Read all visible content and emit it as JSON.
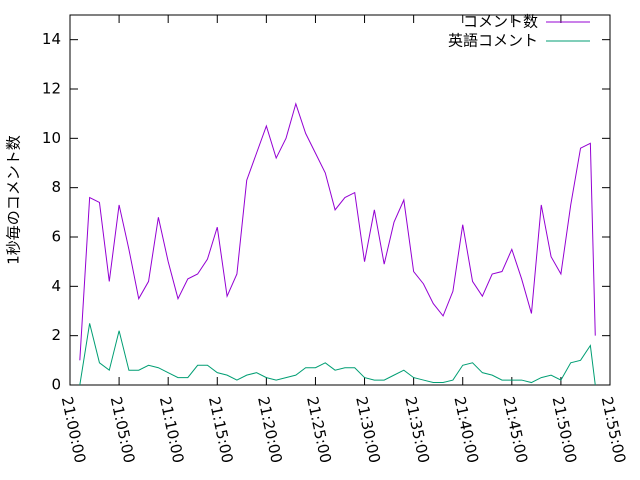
{
  "chart_data": {
    "type": "line",
    "ylabel": "1秒毎のコメント数",
    "x": [
      "21:01:00",
      "21:02:00",
      "21:03:00",
      "21:04:00",
      "21:05:00",
      "21:06:00",
      "21:07:00",
      "21:08:00",
      "21:09:00",
      "21:10:00",
      "21:11:00",
      "21:12:00",
      "21:13:00",
      "21:14:00",
      "21:15:00",
      "21:16:00",
      "21:17:00",
      "21:18:00",
      "21:19:00",
      "21:20:00",
      "21:21:00",
      "21:22:00",
      "21:23:00",
      "21:24:00",
      "21:25:00",
      "21:26:00",
      "21:27:00",
      "21:28:00",
      "21:29:00",
      "21:30:00",
      "21:31:00",
      "21:32:00",
      "21:33:00",
      "21:34:00",
      "21:35:00",
      "21:36:00",
      "21:37:00",
      "21:38:00",
      "21:39:00",
      "21:40:00",
      "21:41:00",
      "21:42:00",
      "21:43:00",
      "21:44:00",
      "21:45:00",
      "21:46:00",
      "21:47:00",
      "21:48:00",
      "21:49:00",
      "21:50:00",
      "21:51:00",
      "21:52:00",
      "21:53:00",
      "21:53:30"
    ],
    "series": [
      {
        "name": "コメント数",
        "color": "#9400d3",
        "values": [
          1.0,
          7.6,
          7.4,
          4.2,
          7.3,
          5.5,
          3.5,
          4.2,
          6.8,
          5.0,
          3.5,
          4.3,
          4.5,
          5.1,
          6.4,
          3.6,
          4.5,
          8.3,
          9.4,
          10.5,
          9.2,
          10.0,
          11.4,
          10.2,
          9.4,
          8.6,
          7.1,
          7.6,
          7.8,
          5.0,
          7.1,
          4.9,
          6.6,
          7.5,
          4.6,
          4.1,
          3.3,
          2.8,
          3.8,
          6.5,
          4.2,
          3.6,
          4.5,
          4.6,
          5.5,
          4.3,
          2.9,
          7.3,
          5.2,
          4.5,
          7.3,
          9.6,
          9.8,
          2.0
        ]
      },
      {
        "name": "英語コメント",
        "color": "#009e73",
        "values": [
          0.0,
          2.5,
          0.9,
          0.6,
          2.2,
          0.6,
          0.6,
          0.8,
          0.7,
          0.5,
          0.3,
          0.3,
          0.8,
          0.8,
          0.5,
          0.4,
          0.2,
          0.4,
          0.5,
          0.3,
          0.2,
          0.3,
          0.4,
          0.7,
          0.7,
          0.9,
          0.6,
          0.7,
          0.7,
          0.3,
          0.2,
          0.2,
          0.4,
          0.6,
          0.3,
          0.2,
          0.1,
          0.1,
          0.2,
          0.8,
          0.9,
          0.5,
          0.4,
          0.2,
          0.2,
          0.2,
          0.1,
          0.3,
          0.4,
          0.2,
          0.9,
          1.0,
          1.6,
          0.0
        ]
      }
    ],
    "xlim": [
      "21:00:00",
      "21:55:00"
    ],
    "xticks": [
      "21:00:00",
      "21:05:00",
      "21:10:00",
      "21:15:00",
      "21:20:00",
      "21:25:00",
      "21:30:00",
      "21:35:00",
      "21:40:00",
      "21:45:00",
      "21:50:00",
      "21:55:00"
    ],
    "ylim": [
      0,
      15
    ],
    "yticks": [
      0,
      2,
      4,
      6,
      8,
      10,
      12,
      14
    ],
    "legend": "top-right"
  }
}
